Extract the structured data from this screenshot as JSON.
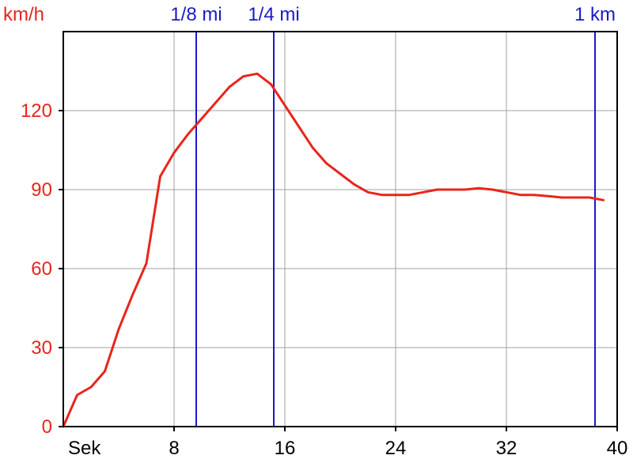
{
  "chart_data": {
    "type": "line",
    "ylabel": "km/h",
    "xlabel": "Sek",
    "xlim": [
      0,
      40
    ],
    "ylim": [
      0,
      150
    ],
    "x_ticks": [
      8,
      16,
      24,
      32,
      40
    ],
    "y_ticks": [
      0,
      30,
      60,
      90,
      120
    ],
    "grid": true,
    "series": [
      {
        "x": [
          0,
          1,
          2,
          3,
          4,
          5,
          6,
          7,
          8,
          9,
          10,
          11,
          12,
          13,
          14,
          15,
          16,
          17,
          18,
          19,
          20,
          21,
          22,
          23,
          24,
          25,
          26,
          27,
          28,
          29,
          30,
          31,
          32,
          33,
          34,
          35,
          36,
          37,
          38,
          39
        ],
        "y": [
          0,
          12,
          15,
          21,
          37,
          50,
          62,
          95,
          104,
          111,
          117,
          123,
          129,
          133,
          134,
          130,
          122,
          114,
          106,
          100,
          96,
          92,
          89,
          88,
          88,
          88,
          89,
          90,
          90,
          90,
          90.5,
          90,
          89,
          88,
          88,
          87.5,
          87,
          87,
          87,
          86
        ],
        "color": "#e8251c"
      }
    ],
    "markers": [
      {
        "label": "1/8 mi",
        "x": 9.6
      },
      {
        "label": "1/4 mi",
        "x": 15.2
      },
      {
        "label": "1 km",
        "x": 38.4
      }
    ],
    "colors": {
      "series": "#e8251c",
      "marker": "#1a1ac8",
      "grid": "#a0a0a0",
      "axis": "#000000",
      "y_text": "#e8251c",
      "x_text": "#000000"
    }
  }
}
